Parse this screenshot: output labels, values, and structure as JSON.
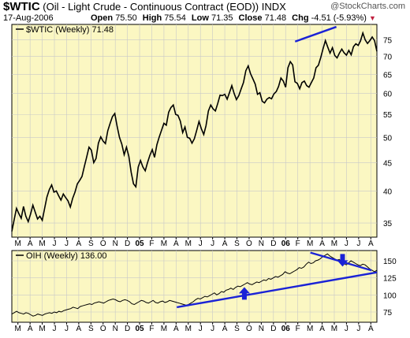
{
  "header": {
    "symbol": "$WTIC",
    "description": "(Oil - Light Crude - Continuous Contract (EOD))",
    "exchange": "INDX",
    "watermark": "@StockCharts.com",
    "date": "17-Aug-2006",
    "open_label": "Open",
    "open_value": "75.50",
    "high_label": "High",
    "high_value": "75.54",
    "low_label": "Low",
    "low_value": "71.35",
    "close_label": "Close",
    "close_value": "71.48",
    "chg_label": "Chg",
    "chg_value": "-4.51 (-5.93%)",
    "chg_arrow": "▼"
  },
  "colors": {
    "panel_bg": "#fbf7c2",
    "price_line": "#000000",
    "trendline": "#1a22d6",
    "arrow": "#1a22d6",
    "chg_arrow": "#c0203f",
    "grid": "#c8c8c8"
  },
  "chart_data": [
    {
      "type": "line",
      "panel": "main",
      "legend": "$WTIC (Weekly) 71.48",
      "y_scale": "log",
      "ylim": [
        33,
        80
      ],
      "yticks": [
        35,
        40,
        45,
        50,
        55,
        60,
        65,
        70,
        75
      ],
      "x_tick_labels": [
        "M",
        "A",
        "M",
        "J",
        "J",
        "A",
        "S",
        "O",
        "N",
        "D",
        "05",
        "F",
        "M",
        "A",
        "M",
        "J",
        "J",
        "A",
        "S",
        "O",
        "N",
        "D",
        "06",
        "F",
        "M",
        "A",
        "M",
        "J",
        "J",
        "A"
      ],
      "period": "2005-02-27 to 2006-08-17 (weekly)",
      "series": [
        {
          "values": [
            33.8,
            35.5,
            37.2,
            36.4,
            35.7,
            37.5,
            36.0,
            35.2,
            36.3,
            37.7,
            36.6,
            35.6,
            36.0,
            35.4,
            37.2,
            39.0,
            40.2,
            41.0,
            39.8,
            40.0,
            39.2,
            38.5,
            39.5,
            38.9,
            38.4,
            37.4,
            38.8,
            39.8,
            41.2,
            41.8,
            42.5,
            44.3,
            46.1,
            48.0,
            47.4,
            45.0,
            45.8,
            48.8,
            50.1,
            49.2,
            48.7,
            51.4,
            53.0,
            54.5,
            55.2,
            52.3,
            50.0,
            48.6,
            46.5,
            48.0,
            46.2,
            43.2,
            41.2,
            40.7,
            44.2,
            45.4,
            44.2,
            43.5,
            45.0,
            46.4,
            47.5,
            46.0,
            48.5,
            50.1,
            51.5,
            53.0,
            52.6,
            55.5,
            56.6,
            57.2,
            55.0,
            54.8,
            53.5,
            51.0,
            52.2,
            50.0,
            49.8,
            48.8,
            49.7,
            51.5,
            53.4,
            51.8,
            50.6,
            52.5,
            55.8,
            57.2,
            56.3,
            55.8,
            57.6,
            59.6,
            59.5,
            59.8,
            58.6,
            60.2,
            62.0,
            60.0,
            58.5,
            59.5,
            61.2,
            62.8,
            66.0,
            67.3,
            65.2,
            63.8,
            62.4,
            59.8,
            60.2,
            58.1,
            57.7,
            58.6,
            59.0,
            58.7,
            59.9,
            60.5,
            61.8,
            64.0,
            63.2,
            61.6,
            66.8,
            68.5,
            67.6,
            63.0,
            62.6,
            61.2,
            62.8,
            63.2,
            62.0,
            61.6,
            62.8,
            64.0,
            66.8,
            67.5,
            69.7,
            72.3,
            74.8,
            72.8,
            71.0,
            72.6,
            70.3,
            69.6,
            71.0,
            72.2,
            71.1,
            70.4,
            71.8,
            70.5,
            72.9,
            73.8,
            73.3,
            74.7,
            77.2,
            75.0,
            73.9,
            74.8,
            75.9,
            74.8,
            71.5
          ]
        }
      ],
      "annotations": [
        {
          "type": "trendline",
          "from": [
            0.776,
            74.5
          ],
          "to": [
            0.889,
            79.2
          ]
        }
      ]
    },
    {
      "type": "line",
      "panel": "lower",
      "legend": "OIH (Weekly) 136.00",
      "ylim": [
        60,
        165
      ],
      "yticks": [
        75,
        100,
        125,
        150
      ],
      "x_tick_labels": [
        "M",
        "A",
        "M",
        "J",
        "J",
        "A",
        "S",
        "O",
        "N",
        "D",
        "05",
        "F",
        "M",
        "A",
        "M",
        "J",
        "J",
        "A",
        "S",
        "O",
        "N",
        "D",
        "06",
        "F",
        "M",
        "A",
        "M",
        "J",
        "J",
        "A"
      ],
      "series": [
        {
          "values": [
            72,
            74,
            76,
            74,
            73,
            72,
            74,
            73,
            71,
            69,
            70,
            72,
            71,
            70,
            72,
            73,
            74,
            73,
            75,
            74,
            76,
            75,
            77,
            78,
            79,
            80,
            82,
            81,
            80,
            83,
            84,
            85,
            86,
            87,
            86,
            88,
            89,
            90,
            89,
            88,
            90,
            92,
            93,
            94,
            93,
            91,
            90,
            92,
            93,
            92,
            90,
            87,
            86,
            88,
            90,
            92,
            91,
            89,
            88,
            90,
            92,
            89,
            88,
            90,
            91,
            89,
            90,
            92,
            91,
            90,
            89,
            88,
            87,
            86,
            85,
            86,
            88,
            90,
            93,
            95,
            94,
            96,
            98,
            97,
            99,
            101,
            103,
            100,
            102,
            105,
            104,
            107,
            108,
            110,
            108,
            111,
            113,
            112,
            114,
            116,
            118,
            116,
            115,
            117,
            119,
            118,
            120,
            122,
            121,
            124,
            123,
            125,
            127,
            126,
            128,
            130,
            134,
            132,
            131,
            133,
            135,
            137,
            140,
            139,
            141,
            145,
            148,
            146,
            147,
            150,
            151,
            153,
            156,
            158,
            160,
            157,
            155,
            153,
            151,
            152,
            149,
            146,
            144,
            147,
            150,
            148,
            146,
            144,
            143,
            145,
            144,
            141,
            138,
            136,
            134,
            136
          ],
          "color": "#000000"
        }
      ],
      "annotations": [
        {
          "type": "trendline",
          "from": [
            0.452,
            82
          ],
          "to": [
            1.0,
            133
          ]
        },
        {
          "type": "trendline",
          "from": [
            0.818,
            162
          ],
          "to": [
            0.985,
            136
          ]
        },
        {
          "type": "arrow",
          "direction": "up",
          "at": [
            0.637,
            100
          ]
        },
        {
          "type": "arrow",
          "direction": "down",
          "at": [
            0.906,
            153
          ]
        }
      ]
    }
  ]
}
